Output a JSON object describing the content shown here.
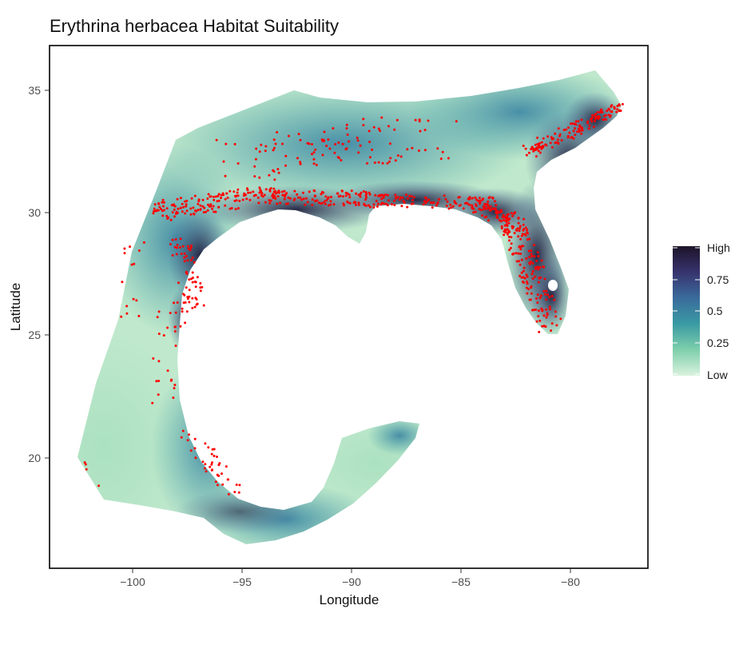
{
  "title": "Erythrina herbacea Habitat Suitability",
  "x_axis": {
    "label": "Longitude",
    "ticks": [
      {
        "value": -100,
        "label": "−100"
      },
      {
        "value": -95,
        "label": "−95"
      },
      {
        "value": -90,
        "label": "−90"
      },
      {
        "value": -85,
        "label": "−85"
      },
      {
        "value": -80,
        "label": "−80"
      }
    ],
    "range": [
      -103.3,
      -76.9
    ]
  },
  "y_axis": {
    "label": "Latitude",
    "ticks": [
      {
        "value": 20,
        "label": "20"
      },
      {
        "value": 25,
        "label": "25"
      },
      {
        "value": 30,
        "label": "30"
      },
      {
        "value": 35,
        "label": "35"
      }
    ],
    "range": [
      15.9,
      36.8
    ]
  },
  "legend": {
    "labels": [
      "High",
      "0.75",
      "0.5",
      "0.25",
      "Low"
    ],
    "values": [
      1.0,
      0.75,
      0.5,
      0.25,
      0.0
    ],
    "colors": [
      "#1c1428",
      "#37336e",
      "#3a6b9c",
      "#3a9aa3",
      "#7fcfac",
      "#d9f2dd"
    ]
  },
  "map": {
    "type": "raster-map",
    "low_color": "#cfeed6",
    "high_color": "#1c1428",
    "occurrence_color": "#ff0000",
    "occurrence_regions": [
      "Gulf of Mexico coast (Texas to Florida)",
      "Florida peninsula",
      "Atlantic coast (Georgia, Carolinas)",
      "eastern Mexico coast",
      "inland southeastern United States"
    ]
  }
}
